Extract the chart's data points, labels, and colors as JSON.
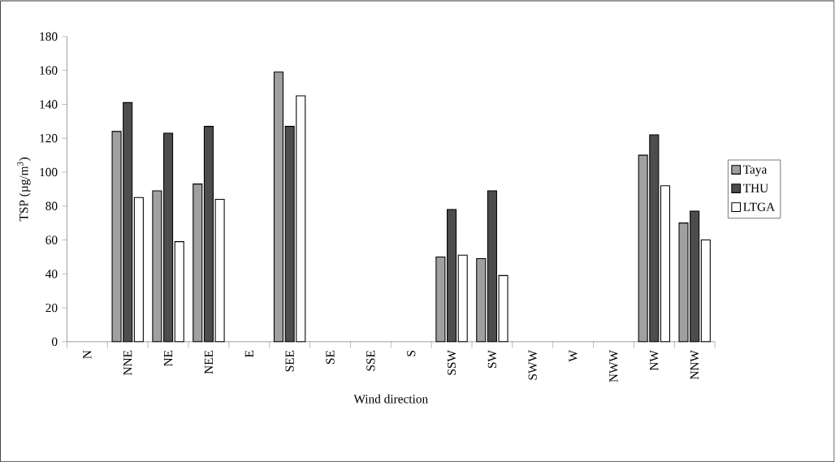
{
  "chart_data": {
    "type": "bar",
    "xlabel": "Wind direction",
    "ylabel": "TSP (µg/m$^{3}$)",
    "categories": [
      "N",
      "NNE",
      "NE",
      "NEE",
      "E",
      "SEE",
      "SE",
      "SSE",
      "S",
      "SSW",
      "SW",
      "SWW",
      "W",
      "NWW",
      "NW",
      "NNW"
    ],
    "series": [
      {
        "name": "Taya",
        "color": "#a0a0a0",
        "values": [
          null,
          124,
          89,
          93,
          null,
          159,
          null,
          null,
          null,
          50,
          49,
          null,
          null,
          null,
          110,
          70
        ]
      },
      {
        "name": "THU",
        "color": "#4d4d4d",
        "values": [
          null,
          141,
          123,
          127,
          null,
          127,
          null,
          null,
          null,
          78,
          89,
          null,
          null,
          null,
          122,
          77
        ]
      },
      {
        "name": "LTGA",
        "color": "#ffffff",
        "values": [
          null,
          85,
          59,
          84,
          null,
          145,
          null,
          null,
          null,
          51,
          39,
          null,
          null,
          null,
          92,
          60
        ]
      }
    ],
    "ylim": [
      0,
      180
    ],
    "yticks": [
      0,
      20,
      40,
      60,
      80,
      100,
      120,
      140,
      160,
      180
    ],
    "legend": "right"
  }
}
